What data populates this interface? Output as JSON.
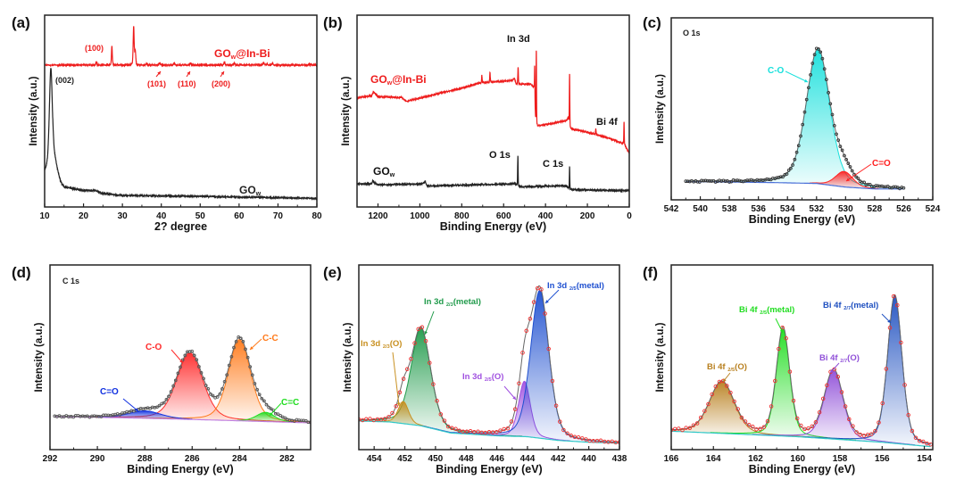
{
  "chart_data": [
    {
      "panel": "(a)",
      "type": "line",
      "xlabel": "2? degree",
      "ylabel": "Intensity (a.u.)",
      "xlim": [
        10,
        80
      ],
      "ylim": [
        0,
        1
      ],
      "xticks": [
        10,
        20,
        30,
        40,
        50,
        60,
        70,
        80
      ],
      "minor": 5,
      "series": [
        {
          "name": "GOw",
          "color": "#222222",
          "baseline": [
            [
              10,
              0.18
            ],
            [
              11,
              0.2
            ],
            [
              13,
              0.13
            ],
            [
              15,
              0.1
            ],
            [
              20,
              0.085
            ],
            [
              23,
              0.085
            ],
            [
              25,
              0.07
            ],
            [
              30,
              0.06
            ],
            [
              50,
              0.055
            ],
            [
              80,
              0.045
            ]
          ],
          "peaks": [
            [
              11.6,
              0.5,
              0.9
            ],
            [
              12.6,
              0.1,
              1.8
            ]
          ]
        },
        {
          "name": "GOw@In-Bi",
          "color": "#ee1c1c",
          "baseline": [
            [
              10,
              0.74
            ],
            [
              80,
              0.74
            ]
          ],
          "peaks": [
            [
              23.3,
              0.015,
              0.3
            ],
            [
              27.3,
              0.1,
              0.25
            ],
            [
              32.9,
              0.2,
              0.3
            ],
            [
              33.3,
              0.07,
              0.3
            ],
            [
              36.2,
              0.008,
              0.3
            ],
            [
              39.6,
              0.012,
              0.3
            ],
            [
              43.3,
              0.012,
              0.3
            ],
            [
              47.5,
              0.012,
              0.3
            ],
            [
              56.2,
              0.018,
              0.3
            ],
            [
              58.8,
              0.012,
              0.3
            ],
            [
              66.3,
              0.014,
              0.3
            ],
            [
              67.2,
              0.008,
              0.3
            ],
            [
              68.6,
              0.01,
              0.3
            ],
            [
              78,
              0.005,
              0.3
            ]
          ]
        }
      ],
      "annotations": [
        {
          "text": "(100)",
          "color": "#ee1c1c"
        },
        {
          "text": "(101)",
          "color": "#ee1c1c"
        },
        {
          "text": "(110)",
          "color": "#ee1c1c"
        },
        {
          "text": "(200)",
          "color": "#ee1c1c"
        },
        {
          "text": "(002)",
          "color": "#222222"
        },
        {
          "text": "GO",
          "sub": "w",
          "after": "@In-Bi",
          "color": "#ee1c1c"
        },
        {
          "text": "GO",
          "sub": "w",
          "after": "",
          "color": "#222222"
        }
      ]
    },
    {
      "panel": "(b)",
      "type": "line",
      "xlabel": "Binding Energy (eV)",
      "ylabel": "Intensity (a.u.)",
      "xlim": [
        1300,
        0
      ],
      "ylim": [
        0,
        1
      ],
      "xticks": [
        1200,
        1000,
        800,
        600,
        400,
        200,
        0
      ],
      "minor": 100,
      "series": [
        {
          "name": "GOw@In-Bi",
          "color": "#ee1c1c",
          "baseline": [
            [
              1300,
              0.57
            ],
            [
              1230,
              0.58
            ],
            [
              1222,
              0.6
            ],
            [
              1200,
              0.575
            ],
            [
              1085,
              0.57
            ],
            [
              1065,
              0.55
            ],
            [
              975,
              0.575
            ],
            [
              800,
              0.62
            ],
            [
              720,
              0.645
            ],
            [
              560,
              0.66
            ],
            [
              548,
              0.67
            ],
            [
              540,
              0.64
            ],
            [
              470,
              0.64
            ],
            [
              455,
              0.62
            ],
            [
              446,
              0.42
            ],
            [
              300,
              0.45
            ],
            [
              292,
              0.465
            ],
            [
              282,
              0.41
            ],
            [
              165,
              0.38
            ],
            [
              100,
              0.36
            ],
            [
              30,
              0.33
            ],
            [
              20,
              0.32
            ],
            [
              0,
              0.28
            ]
          ],
          "peaks": [
            [
              704,
              0.04,
              3
            ],
            [
              665,
              0.05,
              3
            ],
            [
              531,
              0.09,
              3
            ],
            [
              452,
              0.18,
              2.5
            ],
            [
              444,
              0.4,
              2.5
            ],
            [
              285,
              0.27,
              2.5
            ],
            [
              160,
              0.03,
              3
            ],
            [
              25,
              0.12,
              2.5
            ]
          ]
        },
        {
          "name": "GOw",
          "color": "#222222",
          "baseline": [
            [
              1300,
              0.12
            ],
            [
              1230,
              0.12
            ],
            [
              1222,
              0.13
            ],
            [
              1200,
              0.115
            ],
            [
              1000,
              0.12
            ],
            [
              975,
              0.125
            ],
            [
              962,
              0.11
            ],
            [
              560,
              0.12
            ],
            [
              545,
              0.122
            ],
            [
              530,
              0.105
            ],
            [
              320,
              0.11
            ],
            [
              300,
              0.11
            ],
            [
              285,
              0.09
            ],
            [
              0,
              0.085
            ]
          ],
          "peaks": [
            [
              532,
              0.16,
              2.5
            ],
            [
              285,
              0.12,
              2.5
            ],
            [
              975,
              0.01,
              5
            ],
            [
              1225,
              0.01,
              5
            ],
            [
              400,
              0.005,
              4
            ]
          ]
        }
      ],
      "annotations": [
        {
          "text": "GO",
          "sub": "w",
          "after": "@In-Bi",
          "color": "#ee1c1c"
        },
        {
          "text": "In 3d",
          "color": "#111111"
        },
        {
          "text": "Bi 4f",
          "color": "#111111"
        },
        {
          "text": "O 1s",
          "color": "#111111"
        },
        {
          "text": "C 1s",
          "color": "#111111"
        },
        {
          "text": "GO",
          "sub": "w",
          "after": "",
          "color": "#111111"
        }
      ]
    },
    {
      "panel": "(c)",
      "type": "area",
      "title": "O 1s",
      "xlabel": "Binding Energy (eV)",
      "ylabel": "Intensity (a.u.)",
      "xlim": [
        542,
        524
      ],
      "ylim": [
        0,
        1
      ],
      "data_range": [
        541,
        526
      ],
      "marker_color": "#333333",
      "xticks": [
        542,
        540,
        538,
        536,
        534,
        532,
        530,
        528,
        526,
        524
      ],
      "minor": 1,
      "background": {
        "color": "#4a70d8",
        "points": [
          [
            541,
            0.1
          ],
          [
            535,
            0.095
          ],
          [
            532,
            0.09
          ],
          [
            530,
            0.07
          ],
          [
            528,
            0.06
          ],
          [
            526,
            0.06
          ]
        ]
      },
      "components": [
        {
          "name": "C-O",
          "center": 531.9,
          "height": 0.74,
          "fwhm": 1.9,
          "color": "#18e0dc"
        },
        {
          "name": "C=O",
          "center": 530.1,
          "height": 0.085,
          "fwhm": 1.4,
          "color": "#ff2020"
        }
      ],
      "annotations": [
        {
          "text": "C-O",
          "color": "#18e0dc"
        },
        {
          "text": "C=O",
          "color": "#ff2020"
        }
      ]
    },
    {
      "panel": "(d)",
      "type": "area",
      "title": "C 1s",
      "xlabel": "Binding Energy (eV)",
      "ylabel": "Intensity (a.u.)",
      "xlim": [
        292,
        281
      ],
      "ylim": [
        0,
        1
      ],
      "data_range": [
        291.8,
        281
      ],
      "marker_color": "#555555",
      "xticks": [
        292,
        290,
        288,
        286,
        284,
        282
      ],
      "minor": 1,
      "background": {
        "color": "#c080e0",
        "points": [
          [
            292,
            0.18
          ],
          [
            288,
            0.17
          ],
          [
            285,
            0.16
          ],
          [
            281,
            0.145
          ]
        ]
      },
      "components": [
        {
          "name": "C-O",
          "center": 286.1,
          "height": 0.36,
          "fwhm": 1.3,
          "color": "#ff2b2b"
        },
        {
          "name": "C-C",
          "center": 284.0,
          "height": 0.44,
          "fwhm": 1.1,
          "color": "#ff7a1a"
        },
        {
          "name": "C=O",
          "center": 288.0,
          "height": 0.04,
          "fwhm": 1.6,
          "color": "#1030e0"
        },
        {
          "name": "C=C",
          "center": 282.9,
          "height": 0.05,
          "fwhm": 0.9,
          "color": "#20dd20"
        }
      ],
      "annotations": [
        {
          "text": "C-O",
          "color": "#ff2b2b"
        },
        {
          "text": "C-C",
          "color": "#ff7a1a"
        },
        {
          "text": "C=O",
          "color": "#1030e0"
        },
        {
          "text": "C=C",
          "color": "#20dd20"
        }
      ]
    },
    {
      "panel": "(e)",
      "type": "area",
      "xlabel": "Binding Energy (eV)",
      "ylabel": "Intensity (a.u.)",
      "xlim": [
        455,
        438
      ],
      "ylim": [
        0,
        1
      ],
      "data_range": [
        455,
        438
      ],
      "marker_color": "#f03030",
      "xticks": [
        454,
        452,
        450,
        448,
        446,
        444,
        442,
        440,
        438
      ],
      "minor": 1,
      "background": {
        "color": "#30c8c8",
        "points": [
          [
            455,
            0.155
          ],
          [
            453,
            0.15
          ],
          [
            451,
            0.13
          ],
          [
            449,
            0.09
          ],
          [
            446,
            0.075
          ],
          [
            444,
            0.07
          ],
          [
            442,
            0.05
          ],
          [
            440,
            0.04
          ],
          [
            438,
            0.035
          ]
        ]
      },
      "components": [
        {
          "name": "In 3d 2/3(metal)",
          "center": 450.95,
          "height": 0.53,
          "fwhm": 1.5,
          "color": "#1f9a4a"
        },
        {
          "name": "In 3d 2/3(O)",
          "center": 452.1,
          "height": 0.12,
          "fwhm": 0.8,
          "color": "#c89020"
        },
        {
          "name": "In 3d 2/5(O)",
          "center": 444.2,
          "height": 0.3,
          "fwhm": 0.9,
          "color": "#a050e0"
        },
        {
          "name": "In 3d 2/5(metal)",
          "center": 443.2,
          "height": 0.8,
          "fwhm": 1.4,
          "color": "#1f50d0"
        }
      ],
      "annotations": [
        {
          "text": "In 3d ",
          "sub": "2/3",
          "after": "(metal)",
          "color": "#1f9a4a"
        },
        {
          "text": "In 3d ",
          "sub": "2/3",
          "after": "(O)",
          "color": "#c89020"
        },
        {
          "text": "In 3d ",
          "sub": "2/5",
          "after": "(O)",
          "color": "#a050e0"
        },
        {
          "text": "In 3d ",
          "sub": "2/5",
          "after": "(metal)",
          "color": "#1f50d0"
        }
      ]
    },
    {
      "panel": "(f)",
      "type": "area",
      "xlabel": "Binding Energy (eV)",
      "ylabel": "Intensity (a.u.)",
      "xlim": [
        166,
        153.6
      ],
      "ylim": [
        0,
        1
      ],
      "data_range": [
        166,
        153.7
      ],
      "marker_color": "#f03030",
      "xticks": [
        166,
        164,
        162,
        160,
        158,
        156,
        154
      ],
      "minor": 1,
      "background": {
        "color": "#30c8c8",
        "points": [
          [
            166,
            0.1
          ],
          [
            160,
            0.07
          ],
          [
            156,
            0.04
          ],
          [
            153.6,
            0.015
          ]
        ]
      },
      "components": [
        {
          "name": "Bi 4f 2/5(O)",
          "center": 163.6,
          "height": 0.28,
          "fwhm": 1.4,
          "color": "#b88020"
        },
        {
          "name": "Bi 4f 2/5(metal)",
          "center": 160.7,
          "height": 0.58,
          "fwhm": 0.75,
          "color": "#20dd20"
        },
        {
          "name": "Bi 4f 2/7(O)",
          "center": 158.3,
          "height": 0.37,
          "fwhm": 1.05,
          "color": "#9050d8"
        },
        {
          "name": "Bi 4f 2/7(metal)",
          "center": 155.4,
          "height": 0.8,
          "fwhm": 0.8,
          "color": "#1f50c0"
        }
      ],
      "annotations": [
        {
          "text": "Bi 4f ",
          "sub": "2/5",
          "after": "(O)",
          "color": "#b88020"
        },
        {
          "text": "Bi 4f ",
          "sub": "2/5",
          "after": "(metal)",
          "color": "#20dd20"
        },
        {
          "text": "Bi 4f ",
          "sub": "2/7",
          "after": "(O)",
          "color": "#9050d8"
        },
        {
          "text": "Bi 4f ",
          "sub": "2/7",
          "after": "(metal)",
          "color": "#1f50c0"
        }
      ]
    }
  ]
}
